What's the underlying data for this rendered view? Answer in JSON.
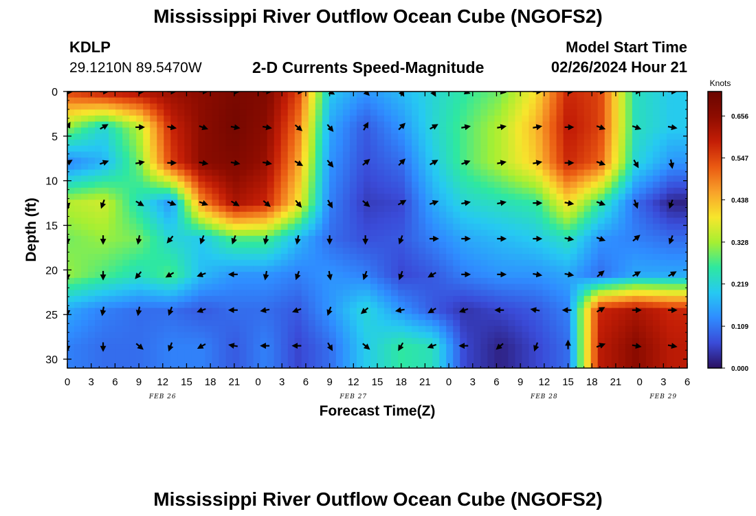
{
  "header": {
    "title": "Mississippi River Outflow Ocean Cube (NGOFS2)",
    "station_id": "KDLP",
    "station_coords": "29.1210N  89.5470W",
    "subtitle": "2-D Currents Speed-Magnitude",
    "model_start_label": "Model Start Time",
    "model_start_value": "02/26/2024 Hour 21",
    "footer_title": "Mississippi River Outflow Ocean Cube (NGOFS2)"
  },
  "colors": {
    "scale": [
      "#2a1060",
      "#3a4bd8",
      "#2f8cff",
      "#26c9f2",
      "#2ee8a0",
      "#a6ef32",
      "#f7e62c",
      "#f8a22a",
      "#ea5a12",
      "#c41e06",
      "#8e0c00",
      "#6a0600"
    ],
    "arrow": "#000000"
  },
  "chart_data": {
    "type": "heatmap",
    "title": "2-D Currents Speed-Magnitude",
    "xlabel": "Forecast Time(Z)",
    "ylabel": "Depth (ft)",
    "x_ticks": [
      "0",
      "3",
      "6",
      "9",
      "12",
      "15",
      "18",
      "21",
      "0",
      "3",
      "6",
      "9",
      "12",
      "15",
      "18",
      "21",
      "0",
      "3",
      "6",
      "9",
      "12",
      "15",
      "18",
      "21",
      "0",
      "3",
      "6"
    ],
    "x_range_hours": [
      0,
      78
    ],
    "date_labels": [
      {
        "label": "FEB 26",
        "hour": 12
      },
      {
        "label": "FEB 27",
        "hour": 36
      },
      {
        "label": "FEB 28",
        "hour": 60
      },
      {
        "label": "FEB 29",
        "hour": 75
      }
    ],
    "y_ticks": [
      0,
      5,
      10,
      15,
      20,
      25,
      30
    ],
    "ylim": [
      0,
      31
    ],
    "colorbar": {
      "label": "Knots",
      "ticks": [
        "0.656",
        "0.547",
        "0.438",
        "0.328",
        "0.219",
        "0.109",
        "0.000"
      ],
      "min": 0.0,
      "max": 0.72
    },
    "depth_levels_ft": [
      0,
      4,
      8,
      12.5,
      16.5,
      20.5,
      24.5,
      28.5
    ],
    "time_hours": [
      0,
      4.5,
      9,
      13,
      17,
      21,
      25,
      29,
      33,
      37.5,
      42,
      46,
      50,
      54.5,
      59,
      63,
      67,
      71.5,
      76
    ],
    "speed_knots": [
      [
        0.55,
        0.6,
        0.62,
        0.64,
        0.66,
        0.69,
        0.68,
        0.55,
        0.2,
        0.14,
        0.18,
        0.22,
        0.26,
        0.3,
        0.4,
        0.58,
        0.55,
        0.24,
        0.2
      ],
      [
        0.32,
        0.22,
        0.34,
        0.58,
        0.66,
        0.7,
        0.66,
        0.5,
        0.16,
        0.08,
        0.14,
        0.22,
        0.28,
        0.34,
        0.44,
        0.6,
        0.55,
        0.24,
        0.2
      ],
      [
        0.12,
        0.17,
        0.3,
        0.55,
        0.66,
        0.68,
        0.64,
        0.46,
        0.14,
        0.07,
        0.1,
        0.2,
        0.28,
        0.34,
        0.42,
        0.58,
        0.52,
        0.22,
        0.14
      ],
      [
        0.34,
        0.36,
        0.24,
        0.14,
        0.48,
        0.62,
        0.58,
        0.4,
        0.12,
        0.05,
        0.06,
        0.16,
        0.22,
        0.24,
        0.26,
        0.4,
        0.26,
        0.1,
        0.02
      ],
      [
        0.3,
        0.32,
        0.3,
        0.22,
        0.2,
        0.28,
        0.28,
        0.18,
        0.1,
        0.07,
        0.08,
        0.12,
        0.16,
        0.18,
        0.2,
        0.24,
        0.14,
        0.12,
        0.1
      ],
      [
        0.32,
        0.28,
        0.24,
        0.28,
        0.18,
        0.14,
        0.14,
        0.12,
        0.14,
        0.12,
        0.06,
        0.08,
        0.12,
        0.14,
        0.14,
        0.16,
        0.1,
        0.16,
        0.16
      ],
      [
        0.16,
        0.12,
        0.1,
        0.1,
        0.08,
        0.1,
        0.1,
        0.08,
        0.14,
        0.22,
        0.14,
        0.08,
        0.04,
        0.06,
        0.08,
        0.12,
        0.58,
        0.62,
        0.58
      ],
      [
        0.12,
        0.1,
        0.1,
        0.12,
        0.12,
        0.08,
        0.12,
        0.06,
        0.1,
        0.2,
        0.26,
        0.24,
        0.06,
        0.02,
        0.06,
        0.1,
        0.6,
        0.66,
        0.6
      ]
    ],
    "direction_deg": [
      [
        90,
        90,
        90,
        90,
        90,
        90,
        90,
        90,
        120,
        135,
        150,
        150,
        110,
        100,
        90,
        90,
        90,
        90,
        90
      ],
      [
        30,
        60,
        90,
        100,
        110,
        100,
        100,
        130,
        140,
        30,
        45,
        60,
        80,
        80,
        80,
        90,
        110,
        110,
        100
      ],
      [
        60,
        70,
        80,
        90,
        100,
        100,
        100,
        120,
        140,
        50,
        45,
        60,
        70,
        80,
        80,
        90,
        110,
        150,
        170
      ],
      [
        170,
        200,
        120,
        110,
        110,
        120,
        130,
        140,
        150,
        130,
        60,
        70,
        80,
        80,
        90,
        100,
        110,
        160,
        200
      ],
      [
        180,
        180,
        190,
        220,
        200,
        200,
        190,
        190,
        180,
        180,
        200,
        90,
        90,
        90,
        90,
        100,
        110,
        50,
        200
      ],
      [
        180,
        180,
        220,
        240,
        250,
        270,
        190,
        200,
        170,
        200,
        200,
        240,
        90,
        90,
        100,
        100,
        50,
        60,
        60
      ],
      [
        180,
        190,
        190,
        200,
        250,
        270,
        260,
        250,
        200,
        230,
        260,
        240,
        250,
        270,
        280,
        270,
        60,
        90,
        90
      ],
      [
        180,
        180,
        130,
        200,
        240,
        280,
        270,
        270,
        150,
        130,
        210,
        250,
        270,
        230,
        200,
        0,
        70,
        100,
        100
      ]
    ]
  }
}
